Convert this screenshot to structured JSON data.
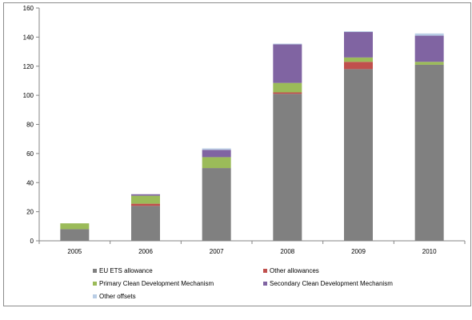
{
  "chart_data": {
    "type": "bar",
    "stacked": true,
    "title": "",
    "xlabel": "",
    "ylabel": "",
    "categories": [
      "2005",
      "2006",
      "2007",
      "2008",
      "2009",
      "2010"
    ],
    "ylim": [
      0,
      160
    ],
    "yticks": [
      0,
      20,
      40,
      60,
      80,
      100,
      120,
      140,
      160
    ],
    "grid": false,
    "legend_position": "bottom",
    "series": [
      {
        "name": "EU ETS allowance",
        "color": "#808080",
        "values": [
          8,
          24,
          50,
          101,
          118,
          121
        ]
      },
      {
        "name": "Other allowances",
        "color": "#c0504d",
        "values": [
          0,
          1.5,
          0,
          1,
          5,
          0
        ]
      },
      {
        "name": "Primary Clean Development Mechanism",
        "color": "#9bbb59",
        "values": [
          4,
          5.5,
          7.5,
          6.5,
          3,
          2
        ]
      },
      {
        "name": "Secondary Clean Development Mechanism",
        "color": "#8064a2",
        "values": [
          0,
          1,
          5,
          26.5,
          17.5,
          18
        ]
      },
      {
        "name": "Other offsets",
        "color": "#b9cde5",
        "values": [
          0,
          0,
          1,
          0.5,
          0.5,
          1.5
        ]
      }
    ]
  }
}
